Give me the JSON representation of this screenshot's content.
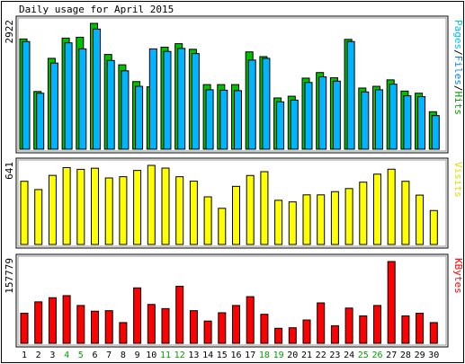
{
  "chart_data": [
    {
      "type": "bar",
      "panel": "hits-files-pages",
      "title": "Daily usage for April 2015",
      "max_label": "2922",
      "legend": [
        {
          "word": "Pages",
          "color": "#00c0ff"
        },
        {
          "word": "Files",
          "color": "#0080ff"
        },
        {
          "word": "Hits",
          "color": "#00a000"
        }
      ],
      "legend_separator": "/",
      "legend_separator_color": "#000000",
      "categories": [
        "1",
        "2",
        "3",
        "4",
        "5",
        "6",
        "7",
        "8",
        "9",
        "10",
        "11",
        "12",
        "13",
        "14",
        "15",
        "16",
        "17",
        "18",
        "19",
        "20",
        "21",
        "22",
        "23",
        "24",
        "25",
        "26",
        "27",
        "28",
        "29",
        "30"
      ],
      "ylim": [
        0,
        2922
      ],
      "series": [
        {
          "name": "Hits",
          "color": "#00c000",
          "values": [
            2560,
            1340,
            2110,
            2580,
            2600,
            2922,
            2200,
            1960,
            1570,
            1450,
            2370,
            2450,
            2320,
            1500,
            1500,
            1500,
            2260,
            2150,
            1190,
            1230,
            1650,
            1780,
            1660,
            2550,
            1420,
            1460,
            1610,
            1350,
            1300,
            870
          ]
        },
        {
          "name": "Files",
          "color": "#00b4ff",
          "values": [
            2500,
            1300,
            2000,
            2470,
            2330,
            2790,
            2060,
            1820,
            1460,
            2330,
            2270,
            2340,
            2220,
            1380,
            1370,
            1360,
            2070,
            2110,
            1100,
            1140,
            1550,
            1680,
            1580,
            2500,
            1330,
            1380,
            1510,
            1240,
            1220,
            780
          ]
        }
      ]
    },
    {
      "type": "bar",
      "panel": "visits",
      "max_label": "641",
      "legend": [
        {
          "word": "Visits",
          "color": "#e0e000"
        }
      ],
      "categories": [
        "1",
        "2",
        "3",
        "4",
        "5",
        "6",
        "7",
        "8",
        "9",
        "10",
        "11",
        "12",
        "13",
        "14",
        "15",
        "16",
        "17",
        "18",
        "19",
        "20",
        "21",
        "22",
        "23",
        "24",
        "25",
        "26",
        "27",
        "28",
        "29",
        "30"
      ],
      "ylim": [
        0,
        641
      ],
      "series": [
        {
          "name": "Visits",
          "color": "#ffff00",
          "values": [
            512,
            445,
            560,
            623,
            609,
            618,
            539,
            549,
            600,
            641,
            619,
            549,
            513,
            386,
            293,
            471,
            559,
            590,
            358,
            345,
            402,
            402,
            428,
            453,
            505,
            570,
            610,
            512,
            400,
            275
          ]
        }
      ]
    },
    {
      "type": "bar",
      "panel": "kbytes",
      "max_label": "157779",
      "legend": [
        {
          "word": "KBytes",
          "color": "#ff0000"
        }
      ],
      "categories": [
        "1",
        "2",
        "3",
        "4",
        "5",
        "6",
        "7",
        "8",
        "9",
        "10",
        "11",
        "12",
        "13",
        "14",
        "15",
        "16",
        "17",
        "18",
        "19",
        "20",
        "21",
        "22",
        "23",
        "24",
        "25",
        "26",
        "27",
        "28",
        "29",
        "30"
      ],
      "weekend_days": [
        "4",
        "5",
        "11",
        "12",
        "18",
        "19",
        "25",
        "26"
      ],
      "weekday_color": "#000000",
      "weekend_color": "#00a000",
      "ylim": [
        0,
        157779
      ],
      "series": [
        {
          "name": "KBytes",
          "color": "#ff0000",
          "values": [
            58000,
            80000,
            88000,
            92000,
            73000,
            62000,
            63000,
            40000,
            107000,
            75000,
            67000,
            110000,
            63000,
            43000,
            59000,
            73000,
            90000,
            56000,
            29000,
            30000,
            45000,
            78000,
            34000,
            68000,
            53000,
            73000,
            157779,
            53000,
            58000,
            40000
          ]
        }
      ]
    }
  ]
}
